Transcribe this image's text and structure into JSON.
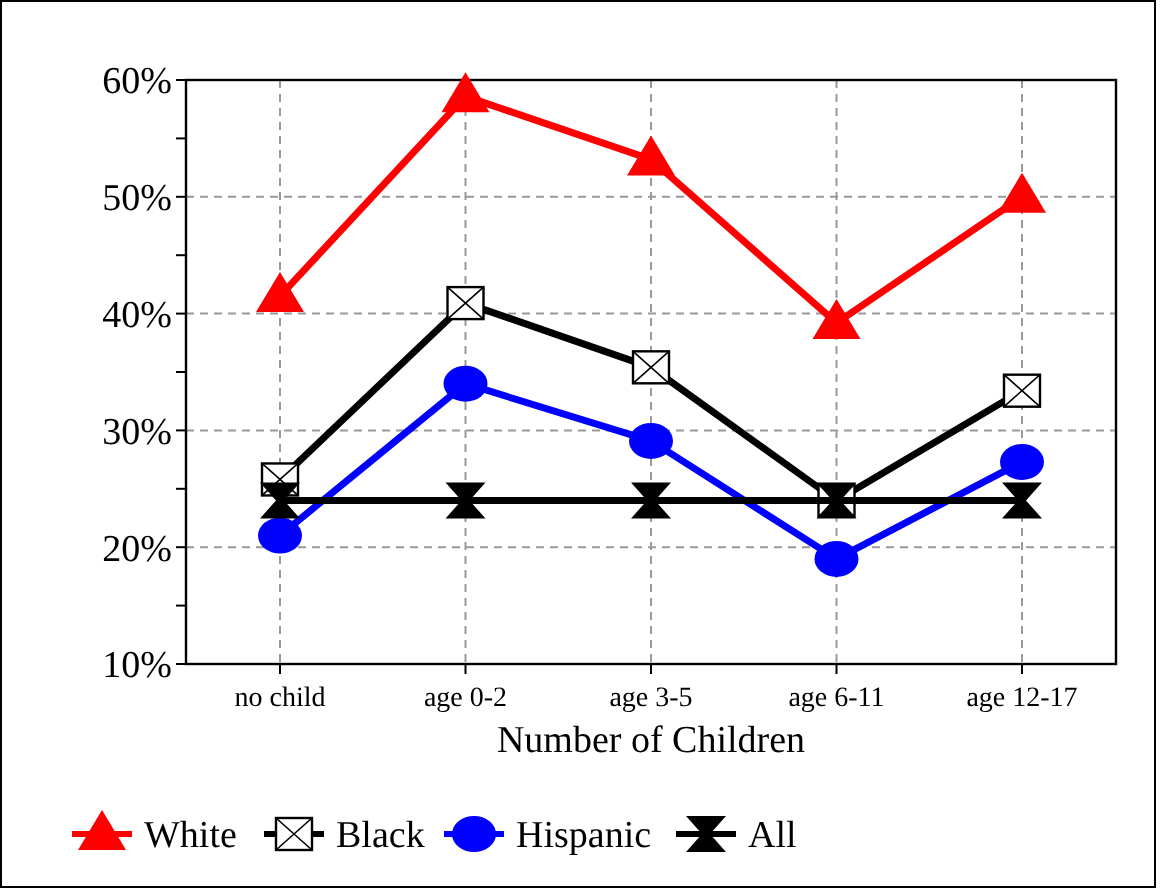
{
  "chart_data": {
    "type": "line",
    "xlabel": "Number of Children",
    "categories": [
      "no child",
      "age 0-2",
      "age 3-5",
      "age 6-11",
      "age 12-17"
    ],
    "series": [
      {
        "name": "White",
        "color": "#ff0000",
        "marker": "triangle",
        "values": [
          41.5,
          58.6,
          53.2,
          39.2,
          50
        ]
      },
      {
        "name": "Black",
        "color": "#000000",
        "marker": "square",
        "values": [
          25.8,
          40.9,
          35.4,
          24,
          33.4
        ]
      },
      {
        "name": "Hispanic",
        "color": "#0000ff",
        "marker": "circle",
        "values": [
          21,
          34,
          29.1,
          19,
          27.3
        ]
      },
      {
        "name": "All",
        "color": "#000000",
        "marker": "cross",
        "values": [
          24,
          24,
          24,
          24,
          24
        ]
      }
    ],
    "ylim": [
      10,
      60
    ],
    "yticks": [
      {
        "value": 10,
        "label": "10%"
      },
      {
        "value": 15,
        "label": null
      },
      {
        "value": 20,
        "label": "20%"
      },
      {
        "value": 25,
        "label": null
      },
      {
        "value": 30,
        "label": "30%"
      },
      {
        "value": 35,
        "label": null
      },
      {
        "value": 40,
        "label": "40%"
      },
      {
        "value": 45,
        "label": null
      },
      {
        "value": 50,
        "label": "50%"
      },
      {
        "value": 55,
        "label": null
      },
      {
        "value": 60,
        "label": "60%"
      }
    ],
    "grid": true,
    "legend": "bottom",
    "line_style": "solid"
  }
}
